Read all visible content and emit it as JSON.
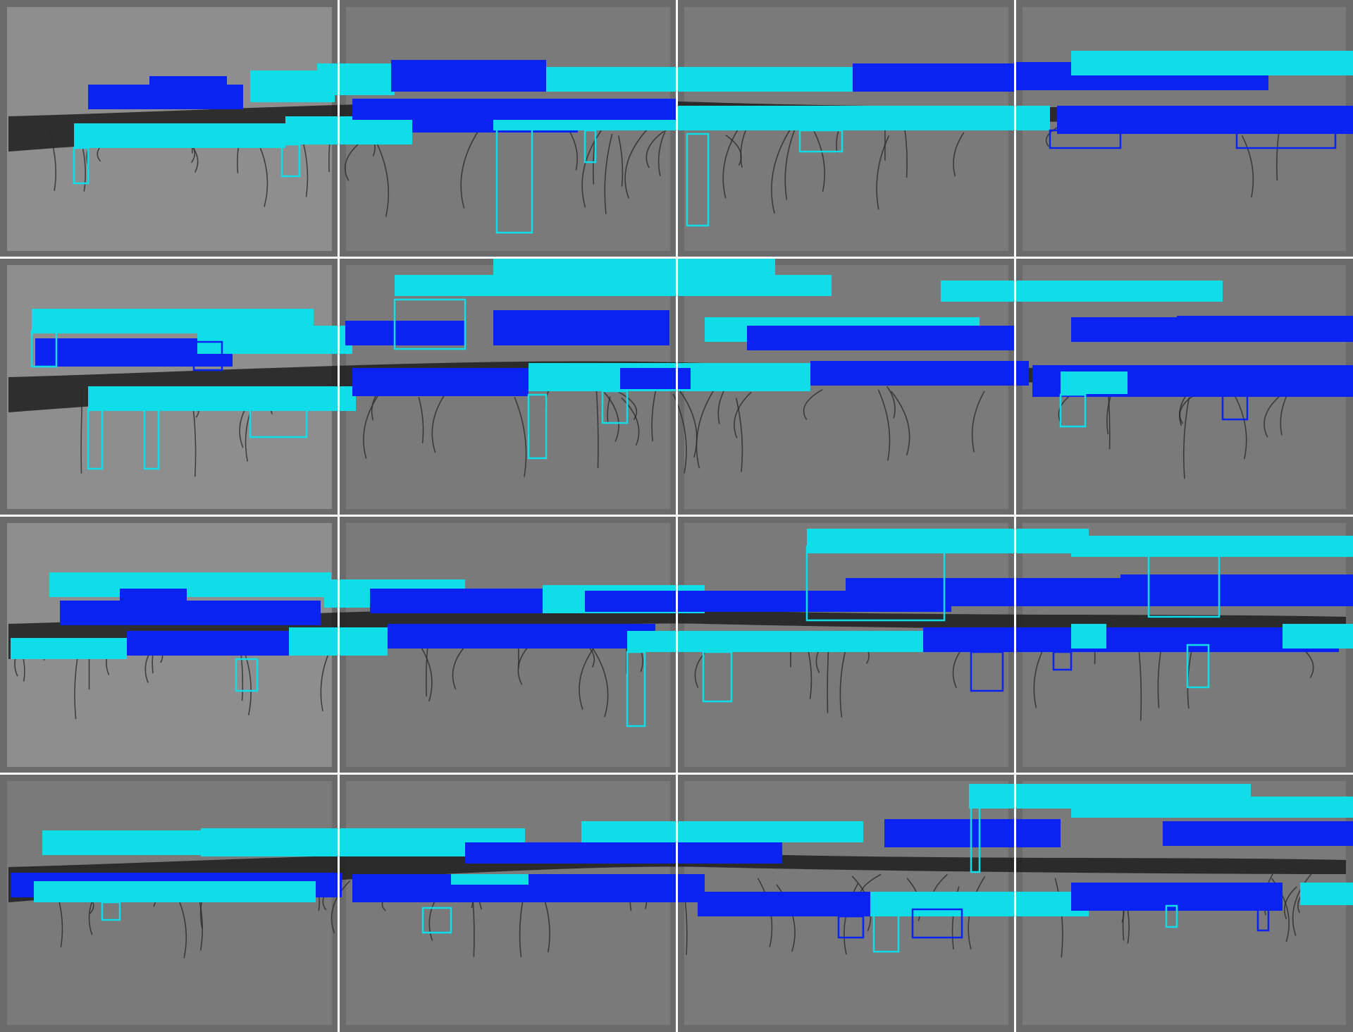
{
  "colors": {
    "background": "#ffffff",
    "grid_line": "#ffffff",
    "box_cyan": "#0fdde8",
    "box_blue": "#0b23f2",
    "tile_gray": "#7a7a7a",
    "tile_gray_light": "#8e8e8e",
    "tile_border": "#6b6b6b",
    "yarn": "#1d1d1d",
    "fiber": "#2a2a2a"
  },
  "mosaic": {
    "rows": 4,
    "columns": 4,
    "subject": "yarn-with-hairiness-fibers",
    "annotation_style": "bounding-boxes-with-filled-label-bars",
    "box_classes": [
      "cyan",
      "blue"
    ]
  }
}
